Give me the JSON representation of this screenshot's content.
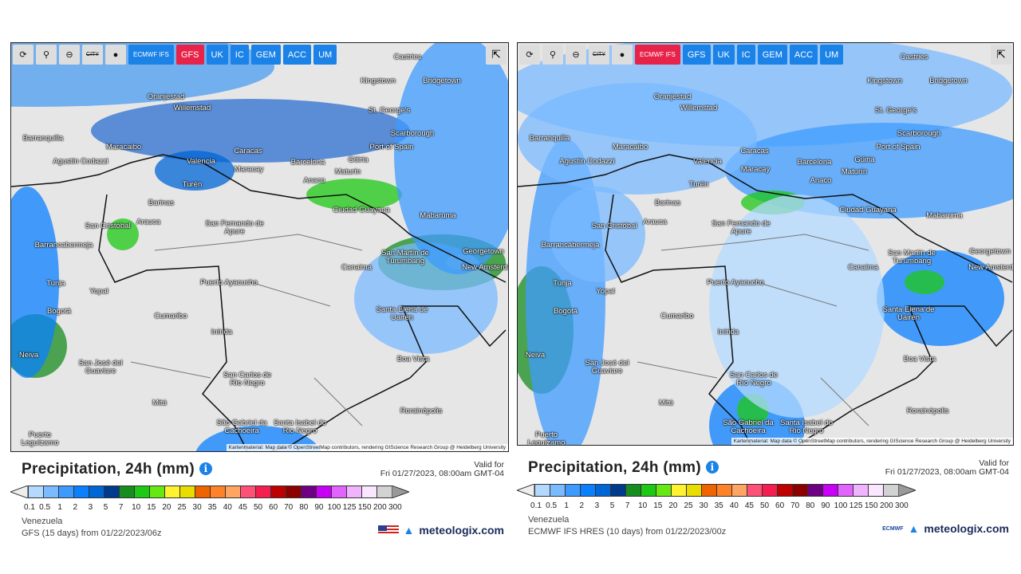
{
  "toolbar": {
    "tools": [
      "refresh-icon",
      "location-pin-icon",
      "zoom-out-icon",
      "city-labels-toggle",
      "dot-marker-icon"
    ],
    "city_label": "CITY",
    "models": [
      "ECMWF IFS",
      "GFS",
      "UK",
      "IC",
      "GEM",
      "ACC",
      "UM"
    ]
  },
  "cities": [
    "Castries",
    "Kingstown",
    "Bridgetown",
    "Oranjestad",
    "Willemstad",
    "St. George's",
    "Scarborough",
    "Port of Spain",
    "Barranquilla",
    "Maracaibo",
    "Caracas",
    "Agustín Codazzi",
    "Valencia",
    "Barcelona",
    "Maracay",
    "Güiria",
    "Maturín",
    "Turén",
    "Anaco",
    "Barinas",
    "Ciudad Guayana",
    "Mabaruma",
    "San Fernando de Apure",
    "San Cristóbal",
    "Arauca",
    "Barrancabermeja",
    "Georgetown",
    "San Martín de Turumbang",
    "Canaima",
    "New Amsterdam",
    "Tunja",
    "Puerto Ayacucho",
    "Yopal",
    "Bogotá",
    "Santa Elena de Uairén",
    "Cumaribo",
    "Inírida",
    "Neiva",
    "Boa Vista",
    "San José del Guaviare",
    "San Carlos de Río Negro",
    "Mitú",
    "Rorainópolis",
    "São Gabriel da Cachoeira",
    "Santa Isabel do Rio Negro",
    "Puerto Leguízamo"
  ],
  "attribution": "Kartenmaterial: Map data © OpenStreetMap contributors, rendering GIScience Research Group @ Heidelberg University",
  "legend": {
    "title": "Precipitation, 24h (mm)",
    "valid_label": "Valid for",
    "valid_time": "Fri 01/27/2023, 08:00am GMT-04",
    "region": "Venezuela",
    "brand": "meteologix.com",
    "ticks": [
      "0.1",
      "0.5",
      "1",
      "2",
      "3",
      "5",
      "7",
      "10",
      "15",
      "20",
      "25",
      "30",
      "35",
      "40",
      "45",
      "50",
      "60",
      "70",
      "80",
      "90",
      "100",
      "125",
      "150",
      "200",
      "300"
    ],
    "colors": [
      "#b3d9ff",
      "#7abaff",
      "#3d9bff",
      "#0a80ff",
      "#0066d6",
      "#003a8c",
      "#178c1f",
      "#1ec814",
      "#66e812",
      "#fff22e",
      "#e8dc00",
      "#f06400",
      "#ff8228",
      "#ffa564",
      "#ff5078",
      "#f51e50",
      "#be0000",
      "#8c0000",
      "#6e0082",
      "#c800f5",
      "#e164ff",
      "#f0b4ff",
      "#fae6ff",
      "#d2d2d2"
    ]
  },
  "panels": [
    {
      "active_model": "GFS",
      "model_run": "GFS  (15 days)  from 01/22/2023/06z",
      "flag": "us-flag"
    },
    {
      "active_model": "ECMWF IFS",
      "model_run": "ECMWF IFS HRES  (10 days)  from 01/22/2023/00z",
      "flag": "ecmwf-logo",
      "flag_text": "ECMWF"
    }
  ]
}
